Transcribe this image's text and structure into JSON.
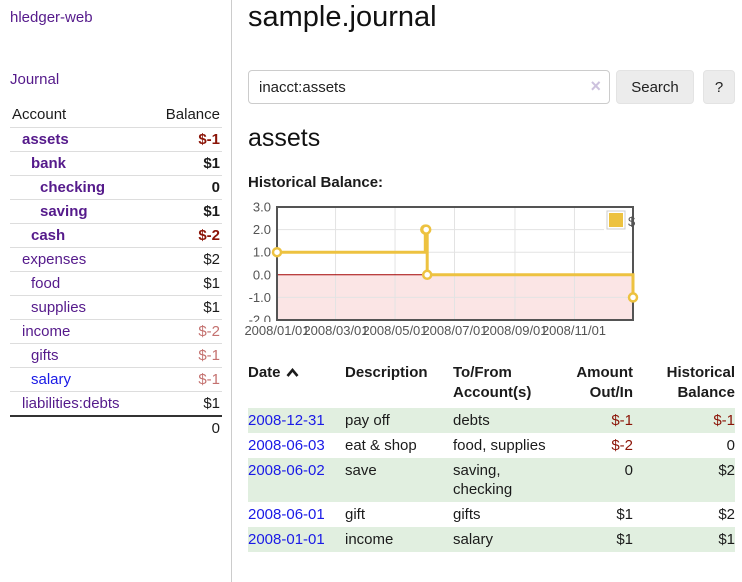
{
  "app": {
    "brand": "hledger-web"
  },
  "sidebar": {
    "journal_label": "Journal",
    "accounts_table": {
      "headers": [
        "Account",
        "Balance"
      ],
      "rows": [
        {
          "name": "assets",
          "depth": 1,
          "bold": true,
          "balance": "$-1",
          "negative": true
        },
        {
          "name": "bank",
          "depth": 2,
          "bold": true,
          "balance": "$1",
          "negative": false
        },
        {
          "name": "checking",
          "depth": 3,
          "bold": true,
          "balance": "0",
          "negative": false
        },
        {
          "name": "saving",
          "depth": 3,
          "bold": true,
          "balance": "$1",
          "negative": false
        },
        {
          "name": "cash",
          "depth": 2,
          "bold": true,
          "balance": "$-2",
          "negative": true
        },
        {
          "name": "expenses",
          "depth": 1,
          "bold": false,
          "balance": "$2",
          "negative": false
        },
        {
          "name": "food",
          "depth": 2,
          "bold": false,
          "balance": "$1",
          "negative": false
        },
        {
          "name": "supplies",
          "depth": 2,
          "bold": false,
          "balance": "$1",
          "negative": false
        },
        {
          "name": "income",
          "depth": 1,
          "bold": false,
          "balance": "$-2",
          "negative": true
        },
        {
          "name": "gifts",
          "depth": 2,
          "bold": false,
          "balance": "$-1",
          "negative": true
        },
        {
          "name": "salary",
          "depth": 2,
          "bold": false,
          "balance": "$-1",
          "negative": true,
          "link_color": "#1a1ae6"
        },
        {
          "name": "liabilities:debts",
          "depth": 1,
          "bold": false,
          "balance": "$1",
          "negative": false
        }
      ],
      "total": "0"
    }
  },
  "header": {
    "title": "sample.journal"
  },
  "search": {
    "value": "inacct:assets",
    "clear_icon": "×",
    "button_label": "Search",
    "help_label": "?"
  },
  "account_page": {
    "title": "assets",
    "chart_label": "Historical Balance:"
  },
  "chart_data": {
    "type": "line",
    "step": true,
    "title": "Historical Balance",
    "series": [
      {
        "name": "$",
        "color": "#edc240",
        "points": [
          [
            "2008-01-01",
            1
          ],
          [
            "2008-06-01",
            2
          ],
          [
            "2008-06-02",
            2
          ],
          [
            "2008-06-03",
            0
          ],
          [
            "2008-12-31",
            -1
          ]
        ]
      }
    ],
    "xrange": [
      "2008-01-01",
      "2008-12-31"
    ],
    "ylim": [
      -2,
      3
    ],
    "x_ticks": [
      {
        "label": "2008/01/01",
        "date": "2008-01-01"
      },
      {
        "label": "2008/03/01",
        "date": "2008-03-01"
      },
      {
        "label": "2008/05/01",
        "date": "2008-05-01"
      },
      {
        "label": "2008/07/01",
        "date": "2008-07-01"
      },
      {
        "label": "2008/09/01",
        "date": "2008-09-01"
      },
      {
        "label": "2008/11/01",
        "date": "2008-11-01"
      }
    ],
    "y_ticks": [
      {
        "label": "3.0",
        "value": 3
      },
      {
        "label": "2.0",
        "value": 2
      },
      {
        "label": "1.0",
        "value": 1
      },
      {
        "label": "0.0",
        "value": 0
      },
      {
        "label": "-1.0",
        "value": -1
      },
      {
        "label": "-2.0",
        "value": -2
      }
    ],
    "legend": {
      "label": "$",
      "position": "top-right"
    },
    "grid": true,
    "negative_region_color": "#fbe5e5",
    "zero_line_color": "#a40000"
  },
  "register": {
    "headers": [
      "Date",
      "Description",
      "To/From Account(s)",
      "Amount Out/In",
      "Historical Balance"
    ],
    "sort_icon": "chevron-up",
    "rows": [
      {
        "date": "2008-12-31",
        "description": "pay off",
        "accounts": "debts",
        "amount": "$-1",
        "amount_negative": true,
        "balance": "$-1",
        "balance_negative": true
      },
      {
        "date": "2008-06-03",
        "description": "eat & shop",
        "accounts": "food, supplies",
        "amount": "$-2",
        "amount_negative": true,
        "balance": "0",
        "balance_negative": false
      },
      {
        "date": "2008-06-02",
        "description": "save",
        "accounts": "saving, checking",
        "amount": "0",
        "amount_negative": false,
        "balance": "$2",
        "balance_negative": false
      },
      {
        "date": "2008-06-01",
        "description": "gift",
        "accounts": "gifts",
        "amount": "$1",
        "amount_negative": false,
        "balance": "$2",
        "balance_negative": false
      },
      {
        "date": "2008-01-01",
        "description": "income",
        "accounts": "salary",
        "amount": "$1",
        "amount_negative": false,
        "balance": "$1",
        "balance_negative": false
      }
    ]
  },
  "colors": {
    "accent_purple": "#551a8b",
    "link_blue": "#1a1ae6",
    "negative_strong": "#8b1407",
    "negative_soft": "#c4716f",
    "row_green": "#e1efe0",
    "chart_yellow": "#edc240",
    "chart_negative_fill": "#fbe5e5",
    "chart_zero_line": "#a40000"
  }
}
